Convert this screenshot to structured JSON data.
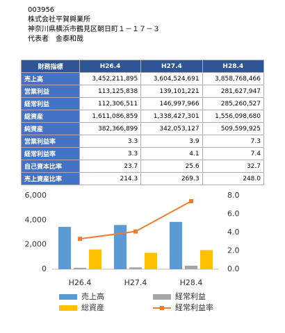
{
  "header": {
    "code": "003956",
    "company": "株式会社平賀興業所",
    "address": "神奈川県横浜市鶴見区朝日町１－１７－３",
    "representative": "代表者　金泰和哉"
  },
  "table": {
    "columns": [
      "財務指標",
      "H26.4",
      "H27.4",
      "H28.4"
    ],
    "rows": [
      [
        "売上高",
        "3,452,211,895",
        "3,604,524,691",
        "3,858,768,466"
      ],
      [
        "営業利益",
        "113,125,838",
        "139,101,221",
        "281,627,947"
      ],
      [
        "経常利益",
        "112,306,511",
        "146,997,966",
        "285,260,527"
      ],
      [
        "総資産",
        "1,611,086,859",
        "1,338,427,301",
        "1,556,098,680"
      ],
      [
        "純資産",
        "382,366,899",
        "342,053,127",
        "509,599,925"
      ],
      [
        "営業利益率",
        "3.3",
        "3.9",
        "7.3"
      ],
      [
        "経常利益率",
        "3.3",
        "4.1",
        "7.4"
      ],
      [
        "自己資本比率",
        "23.7",
        "25.6",
        "32.7"
      ],
      [
        "売上資産比率",
        "214.3",
        "269.3",
        "248.0"
      ]
    ]
  },
  "chart_data": {
    "type": "bar",
    "categories": [
      "H26.4",
      "H27.4",
      "H28.4"
    ],
    "series": [
      {
        "name": "売上高",
        "color": "#5b9bd5",
        "values": [
          3452,
          3605,
          3859
        ]
      },
      {
        "name": "経常利益",
        "color": "#a5a5a5",
        "values": [
          112,
          147,
          285
        ]
      },
      {
        "name": "総資産",
        "color": "#ffc000",
        "values": [
          1611,
          1338,
          1556
        ]
      },
      {
        "name": "経常利益率",
        "color": "#ed7d31",
        "type": "line",
        "axis": "y2",
        "values": [
          3.3,
          4.1,
          7.4
        ]
      }
    ],
    "ylim": [
      0,
      6000
    ],
    "yticks": [
      0,
      {
        "value": 2000,
        "label": "2,000"
      },
      {
        "value": 4000,
        "label": "4,000"
      },
      {
        "value": 6000,
        "label": "6,000"
      }
    ],
    "y2lim": [
      0,
      8
    ],
    "y2ticks": [
      {
        "value": 0,
        "label": "0.0"
      },
      {
        "value": 2,
        "label": "2.0"
      },
      {
        "value": 4,
        "label": "4.0"
      },
      {
        "value": 6,
        "label": "6.0"
      },
      {
        "value": 8,
        "label": "8.0"
      }
    ],
    "grid": false,
    "legend": "bottom"
  }
}
